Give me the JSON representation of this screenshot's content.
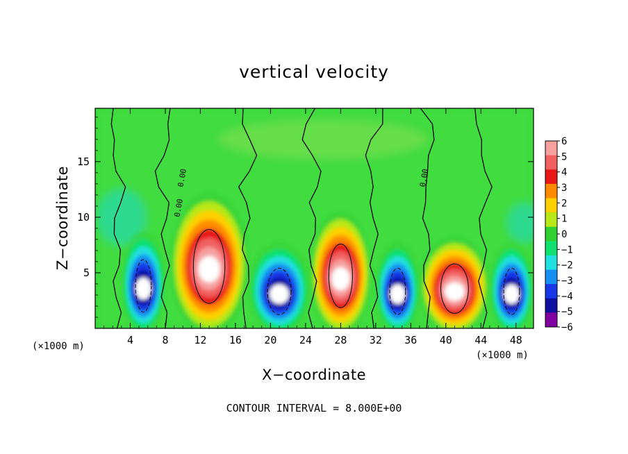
{
  "chart_data": {
    "type": "heatmap",
    "title": "vertical velocity",
    "xlabel": "X−coordinate",
    "ylabel": "Z−coordinate",
    "x_unit": "(×1000 m)",
    "z_unit": "(×1000 m)",
    "xlim": [
      0,
      50
    ],
    "ylim": [
      0,
      19.8
    ],
    "x_ticks": [
      "4",
      "8",
      "12",
      "16",
      "20",
      "24",
      "28",
      "32",
      "36",
      "40",
      "44",
      "48"
    ],
    "x_tick_values": [
      4,
      8,
      12,
      16,
      20,
      24,
      28,
      32,
      36,
      40,
      44,
      48
    ],
    "y_ticks": [
      "5",
      "10",
      "15"
    ],
    "y_tick_values": [
      5,
      10,
      15
    ],
    "colorbar": {
      "labels": [
        "6",
        "5",
        "4",
        "3",
        "2",
        "1",
        "0",
        "−1",
        "−2",
        "−3",
        "−4",
        "−5",
        "−6"
      ],
      "values": [
        6,
        5,
        4,
        3,
        2,
        1,
        0,
        -1,
        -2,
        -3,
        -4,
        -5,
        -6
      ],
      "colors": [
        "#f7a0a0",
        "#f06060",
        "#e81818",
        "#ff8c00",
        "#ffd000",
        "#b8e818",
        "#30d030",
        "#10e070",
        "#20e0e0",
        "#1890f0",
        "#1838e8",
        "#1010a0",
        "#8000a0"
      ],
      "range": [
        -6,
        6
      ]
    },
    "cells": [
      {
        "center_x": 5.5,
        "width": 4.0,
        "sign": -1,
        "peak": -14,
        "top": 9.0
      },
      {
        "center_x": 13.0,
        "width": 8.0,
        "sign": 1,
        "peak": 14,
        "top": 12.5
      },
      {
        "center_x": 21.0,
        "width": 6.0,
        "sign": -1,
        "peak": -14,
        "top": 8.0
      },
      {
        "center_x": 28.0,
        "width": 6.0,
        "sign": 1,
        "peak": 16,
        "top": 10.8
      },
      {
        "center_x": 34.5,
        "width": 4.0,
        "sign": -1,
        "peak": -10,
        "top": 8.0
      },
      {
        "center_x": 41.0,
        "width": 7.0,
        "sign": 1,
        "peak": 14,
        "top": 8.5
      },
      {
        "center_x": 47.5,
        "width": 4.0,
        "sign": -1,
        "peak": -12,
        "top": 8.0
      }
    ],
    "contour_labels": [
      "0.00",
      "0.00",
      "0.00"
    ],
    "contour_interval_text": "CONTOUR INTERVAL = 8.000E+00"
  }
}
